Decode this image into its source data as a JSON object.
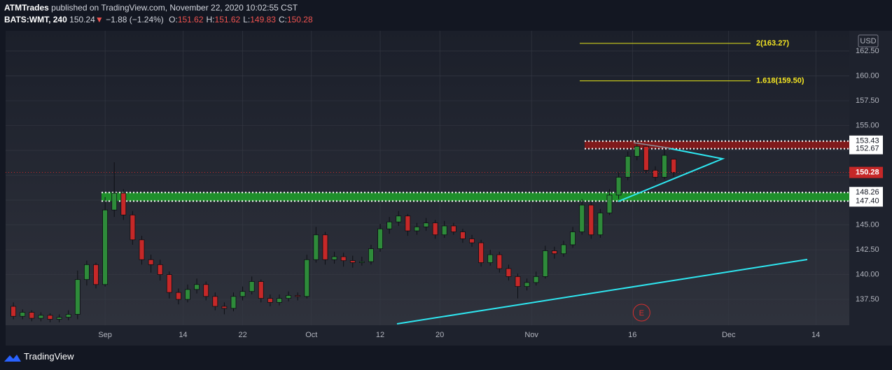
{
  "header": {
    "author": "ATMTrades",
    "published": "published on TradingView.com, November 22, 2020 10:02:55 CST",
    "symbol": "BATS:WMT, 240",
    "price": "150.24",
    "change_arrow": "▼",
    "change": "−1.88 (−1.24%)",
    "ohlc_legend": [
      {
        "key": "O:",
        "value": "151.62"
      },
      {
        "key": "H:",
        "value": "151.62"
      },
      {
        "key": "L:",
        "value": "149.83"
      },
      {
        "key": "C:",
        "value": "150.28"
      }
    ]
  },
  "footer": {
    "brand": "TradingView"
  },
  "chart_data": {
    "type": "candlestick",
    "currency": "USD",
    "up_color": "#2e8b3a",
    "down_color": "#c62828",
    "x": [
      -20,
      -18,
      -16,
      -14,
      -12,
      -10,
      -8,
      -6,
      -4,
      -2,
      0,
      2,
      4,
      6,
      8,
      10,
      12,
      14,
      16,
      18,
      20,
      22,
      24,
      26,
      28,
      30,
      32,
      34,
      36,
      38,
      40,
      42,
      44,
      46,
      48,
      50,
      52,
      54,
      56,
      58,
      60,
      62,
      64,
      66,
      68,
      70,
      72,
      74,
      76,
      78,
      80,
      82,
      84,
      86,
      88,
      90,
      92,
      94,
      96,
      98,
      100,
      102,
      104,
      106,
      108,
      110,
      112,
      114,
      116,
      118,
      120,
      122,
      124
    ],
    "ohlc": [
      [
        136.8,
        137.2,
        135.5,
        135.8
      ],
      [
        135.8,
        136.5,
        135.5,
        136.2
      ],
      [
        136.2,
        136.4,
        135.3,
        135.6
      ],
      [
        135.6,
        136.2,
        135.3,
        135.9
      ],
      [
        135.9,
        136.1,
        135.2,
        135.5
      ],
      [
        135.5,
        136.0,
        135.2,
        135.7
      ],
      [
        135.7,
        136.4,
        135.4,
        136.0
      ],
      [
        136.0,
        140.4,
        135.5,
        139.5
      ],
      [
        139.5,
        141.4,
        138.9,
        141.0
      ],
      [
        141.0,
        141.2,
        138.6,
        139.0
      ],
      [
        139.0,
        147.8,
        138.8,
        146.5
      ],
      [
        146.5,
        151.3,
        145.8,
        148.2
      ],
      [
        148.2,
        148.6,
        145.5,
        146.0
      ],
      [
        146.0,
        146.4,
        143.0,
        143.5
      ],
      [
        143.5,
        143.9,
        141.0,
        141.5
      ],
      [
        141.5,
        142.0,
        140.2,
        141.0
      ],
      [
        141.0,
        141.5,
        139.4,
        140.0
      ],
      [
        140.0,
        140.3,
        137.6,
        138.2
      ],
      [
        138.2,
        138.6,
        137.0,
        137.5
      ],
      [
        137.5,
        139.0,
        137.2,
        138.5
      ],
      [
        138.5,
        139.6,
        138.1,
        139.0
      ],
      [
        139.0,
        139.3,
        137.4,
        137.8
      ],
      [
        137.8,
        138.2,
        136.4,
        136.8
      ],
      [
        136.8,
        137.2,
        136.0,
        136.6
      ],
      [
        136.6,
        138.2,
        136.3,
        137.8
      ],
      [
        137.8,
        138.8,
        137.4,
        138.3
      ],
      [
        138.3,
        139.8,
        138.0,
        139.3
      ],
      [
        139.3,
        139.5,
        137.2,
        137.6
      ],
      [
        137.6,
        138.0,
        136.8,
        137.2
      ],
      [
        137.2,
        138.0,
        136.9,
        137.6
      ],
      [
        137.6,
        138.3,
        137.3,
        137.9
      ],
      [
        137.9,
        138.2,
        137.4,
        137.8
      ],
      [
        137.8,
        142.0,
        137.6,
        141.5
      ],
      [
        141.5,
        144.8,
        141.2,
        144.0
      ],
      [
        144.0,
        144.3,
        141.0,
        141.5
      ],
      [
        141.5,
        142.3,
        141.1,
        141.8
      ],
      [
        141.8,
        142.2,
        140.8,
        141.4
      ],
      [
        141.4,
        141.9,
        140.7,
        141.2
      ],
      [
        141.2,
        141.8,
        140.9,
        141.3
      ],
      [
        141.3,
        143.0,
        141.0,
        142.6
      ],
      [
        142.6,
        145.1,
        142.3,
        144.6
      ],
      [
        144.6,
        145.8,
        144.1,
        145.3
      ],
      [
        145.3,
        146.4,
        144.9,
        145.9
      ],
      [
        145.9,
        146.1,
        143.9,
        144.4
      ],
      [
        144.4,
        145.2,
        144.0,
        144.8
      ],
      [
        144.8,
        145.7,
        144.4,
        145.2
      ],
      [
        145.2,
        145.5,
        143.6,
        144.0
      ],
      [
        144.0,
        145.4,
        143.7,
        144.9
      ],
      [
        144.9,
        145.2,
        144.0,
        144.3
      ],
      [
        144.3,
        144.6,
        143.2,
        143.6
      ],
      [
        143.6,
        144.0,
        142.8,
        143.2
      ],
      [
        143.2,
        143.5,
        140.8,
        141.2
      ],
      [
        141.2,
        142.5,
        140.9,
        142.0
      ],
      [
        142.0,
        142.3,
        140.2,
        140.6
      ],
      [
        140.6,
        141.0,
        139.4,
        139.8
      ],
      [
        139.8,
        140.1,
        137.6,
        138.8
      ],
      [
        138.8,
        139.6,
        138.4,
        139.2
      ],
      [
        139.2,
        140.3,
        138.9,
        139.8
      ],
      [
        139.8,
        142.9,
        139.6,
        142.4
      ],
      [
        142.4,
        142.8,
        141.6,
        142.1
      ],
      [
        142.1,
        143.4,
        141.8,
        143.0
      ],
      [
        143.0,
        144.8,
        142.7,
        144.3
      ],
      [
        144.3,
        147.6,
        144.0,
        147.0
      ],
      [
        147.0,
        147.3,
        143.6,
        144.0
      ],
      [
        144.0,
        146.6,
        143.7,
        146.2
      ],
      [
        146.2,
        148.6,
        146.0,
        148.0
      ],
      [
        148.0,
        150.3,
        147.6,
        149.8
      ],
      [
        149.8,
        152.4,
        149.5,
        151.9
      ],
      [
        151.9,
        153.4,
        151.5,
        152.9
      ],
      [
        152.9,
        153.1,
        150.2,
        150.5
      ],
      [
        150.5,
        150.9,
        149.4,
        149.8
      ],
      [
        149.8,
        152.6,
        149.6,
        152.0
      ],
      [
        151.62,
        151.62,
        149.83,
        150.28
      ]
    ],
    "xlim": [
      -21.7,
      162.3
    ],
    "xticks": [
      {
        "value": 0,
        "label": "Sep"
      },
      {
        "value": 17,
        "label": "14"
      },
      {
        "value": 30,
        "label": "22"
      },
      {
        "value": 45,
        "label": "Oct"
      },
      {
        "value": 60,
        "label": "12"
      },
      {
        "value": 73,
        "label": "20"
      },
      {
        "value": 93,
        "label": "Nov"
      },
      {
        "value": 115,
        "label": "16"
      },
      {
        "value": 136,
        "label": "Dec"
      },
      {
        "value": 155,
        "label": "14"
      }
    ],
    "ylim": [
      134.9,
      164.54
    ],
    "yticks": [
      {
        "value": 137.5,
        "label": "137.50"
      },
      {
        "value": 140,
        "label": "140.00"
      },
      {
        "value": 142.5,
        "label": "142.50"
      },
      {
        "value": 145,
        "label": "145.00"
      },
      {
        "value": 147.5,
        "label": "147.50"
      },
      {
        "value": 150,
        "label": "150.00"
      },
      {
        "value": 152.5,
        "label": "152.50"
      },
      {
        "value": 155,
        "label": "155.00"
      },
      {
        "value": 157.5,
        "label": "157.50"
      },
      {
        "value": 160,
        "label": "160.00"
      },
      {
        "value": 162.5,
        "label": "162.50"
      }
    ],
    "grid": true,
    "fib_levels": [
      {
        "value": 163.27,
        "label": "2(163.27)"
      },
      {
        "value": 159.5,
        "label": "1.618(159.50)"
      }
    ],
    "zones": [
      {
        "color": "#8b1a1a",
        "low": {
          "value": 152.67,
          "label": "152.67"
        },
        "high": {
          "value": 153.43,
          "label": "153.43"
        }
      },
      {
        "color": "#1f9a2a",
        "low": {
          "value": 147.4,
          "label": "147.40"
        },
        "high": {
          "value": 148.26,
          "label": "148.26"
        }
      }
    ],
    "events": [
      {
        "x": 117,
        "label": "E"
      }
    ]
  }
}
